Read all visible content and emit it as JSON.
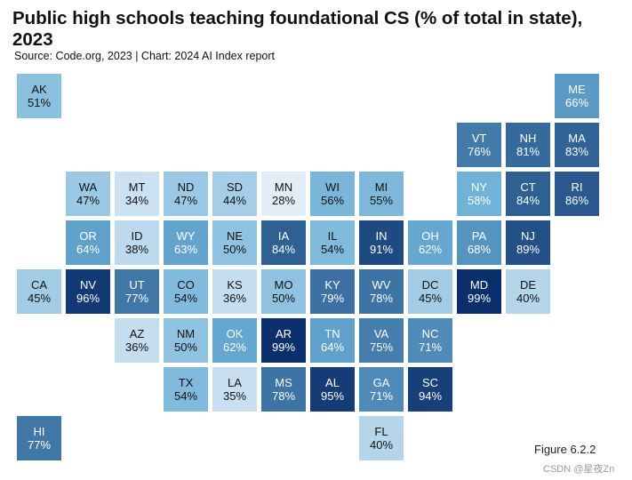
{
  "title": "Public high schools teaching foundational CS (% of total in state), 2023",
  "source": "Source: Code.org, 2023 | Chart: 2024 AI Index report",
  "figure_label": "Figure 6.2.2",
  "watermark": "CSDN @星夜Zn",
  "chart_data": {
    "type": "heatmap",
    "title": "Public high schools teaching foundational CS (% of total in state), 2023",
    "unit": "%",
    "states": [
      {
        "abbr": "AK",
        "value": 51,
        "row": 0,
        "col": 0
      },
      {
        "abbr": "ME",
        "value": 66,
        "row": 0,
        "col": 11
      },
      {
        "abbr": "VT",
        "value": 76,
        "row": 1,
        "col": 9
      },
      {
        "abbr": "NH",
        "value": 81,
        "row": 1,
        "col": 10
      },
      {
        "abbr": "MA",
        "value": 83,
        "row": 1,
        "col": 11
      },
      {
        "abbr": "WA",
        "value": 47,
        "row": 2,
        "col": 1
      },
      {
        "abbr": "MT",
        "value": 34,
        "row": 2,
        "col": 2
      },
      {
        "abbr": "ND",
        "value": 47,
        "row": 2,
        "col": 3
      },
      {
        "abbr": "SD",
        "value": 44,
        "row": 2,
        "col": 4
      },
      {
        "abbr": "MN",
        "value": 28,
        "row": 2,
        "col": 5
      },
      {
        "abbr": "WI",
        "value": 56,
        "row": 2,
        "col": 6
      },
      {
        "abbr": "MI",
        "value": 55,
        "row": 2,
        "col": 7
      },
      {
        "abbr": "NY",
        "value": 58,
        "row": 2,
        "col": 9
      },
      {
        "abbr": "CT",
        "value": 84,
        "row": 2,
        "col": 10
      },
      {
        "abbr": "RI",
        "value": 86,
        "row": 2,
        "col": 11
      },
      {
        "abbr": "OR",
        "value": 64,
        "row": 3,
        "col": 1
      },
      {
        "abbr": "ID",
        "value": 38,
        "row": 3,
        "col": 2
      },
      {
        "abbr": "WY",
        "value": 63,
        "row": 3,
        "col": 3
      },
      {
        "abbr": "NE",
        "value": 50,
        "row": 3,
        "col": 4
      },
      {
        "abbr": "IA",
        "value": 84,
        "row": 3,
        "col": 5
      },
      {
        "abbr": "IL",
        "value": 54,
        "row": 3,
        "col": 6
      },
      {
        "abbr": "IN",
        "value": 91,
        "row": 3,
        "col": 7
      },
      {
        "abbr": "OH",
        "value": 62,
        "row": 3,
        "col": 8
      },
      {
        "abbr": "PA",
        "value": 68,
        "row": 3,
        "col": 9
      },
      {
        "abbr": "NJ",
        "value": 89,
        "row": 3,
        "col": 10
      },
      {
        "abbr": "CA",
        "value": 45,
        "row": 4,
        "col": 0
      },
      {
        "abbr": "NV",
        "value": 96,
        "row": 4,
        "col": 1
      },
      {
        "abbr": "UT",
        "value": 77,
        "row": 4,
        "col": 2
      },
      {
        "abbr": "CO",
        "value": 54,
        "row": 4,
        "col": 3
      },
      {
        "abbr": "KS",
        "value": 36,
        "row": 4,
        "col": 4
      },
      {
        "abbr": "MO",
        "value": 50,
        "row": 4,
        "col": 5
      },
      {
        "abbr": "KY",
        "value": 79,
        "row": 4,
        "col": 6
      },
      {
        "abbr": "WV",
        "value": 78,
        "row": 4,
        "col": 7
      },
      {
        "abbr": "DC",
        "value": 45,
        "row": 4,
        "col": 8
      },
      {
        "abbr": "MD",
        "value": 99,
        "row": 4,
        "col": 9
      },
      {
        "abbr": "DE",
        "value": 40,
        "row": 4,
        "col": 10
      },
      {
        "abbr": "AZ",
        "value": 36,
        "row": 5,
        "col": 2
      },
      {
        "abbr": "NM",
        "value": 50,
        "row": 5,
        "col": 3
      },
      {
        "abbr": "OK",
        "value": 62,
        "row": 5,
        "col": 4
      },
      {
        "abbr": "AR",
        "value": 99,
        "row": 5,
        "col": 5
      },
      {
        "abbr": "TN",
        "value": 64,
        "row": 5,
        "col": 6
      },
      {
        "abbr": "VA",
        "value": 75,
        "row": 5,
        "col": 7
      },
      {
        "abbr": "NC",
        "value": 71,
        "row": 5,
        "col": 8
      },
      {
        "abbr": "TX",
        "value": 54,
        "row": 6,
        "col": 3
      },
      {
        "abbr": "LA",
        "value": 35,
        "row": 6,
        "col": 4
      },
      {
        "abbr": "MS",
        "value": 78,
        "row": 6,
        "col": 5
      },
      {
        "abbr": "AL",
        "value": 95,
        "row": 6,
        "col": 6
      },
      {
        "abbr": "GA",
        "value": 71,
        "row": 6,
        "col": 7
      },
      {
        "abbr": "SC",
        "value": 94,
        "row": 6,
        "col": 8
      },
      {
        "abbr": "HI",
        "value": 77,
        "row": 7,
        "col": 0
      },
      {
        "abbr": "FL",
        "value": 40,
        "row": 7,
        "col": 7
      }
    ],
    "color_scale": {
      "low_color": "#e2edf8",
      "mid_color": "#6aaed6",
      "high_color": "#0b2f6b",
      "min": 28,
      "max": 99
    }
  }
}
